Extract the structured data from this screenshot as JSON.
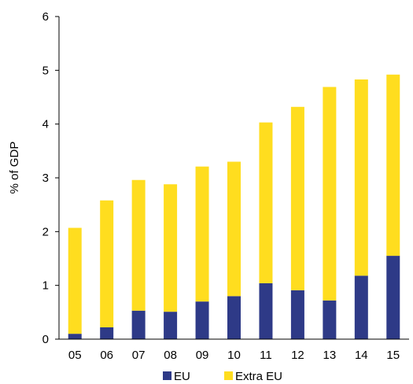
{
  "chart_data": {
    "type": "bar",
    "stacked": true,
    "categories": [
      "05",
      "06",
      "07",
      "08",
      "09",
      "10",
      "11",
      "12",
      "13",
      "14",
      "15"
    ],
    "series": [
      {
        "name": "EU",
        "color": "#2E3A87",
        "values": [
          0.1,
          0.22,
          0.53,
          0.51,
          0.7,
          0.8,
          1.04,
          0.91,
          0.72,
          1.18,
          1.55
        ]
      },
      {
        "name": "Extra EU",
        "color": "#FFDD1F",
        "values": [
          1.97,
          2.36,
          2.43,
          2.37,
          2.51,
          2.5,
          2.99,
          3.41,
          3.97,
          3.65,
          3.37
        ]
      }
    ],
    "title": "",
    "xlabel": "",
    "ylabel": "% of GDP",
    "ylim": [
      0,
      6
    ],
    "yticks": [
      0,
      1,
      2,
      3,
      4,
      5,
      6
    ],
    "grid": false,
    "legend_position": "bottom"
  }
}
